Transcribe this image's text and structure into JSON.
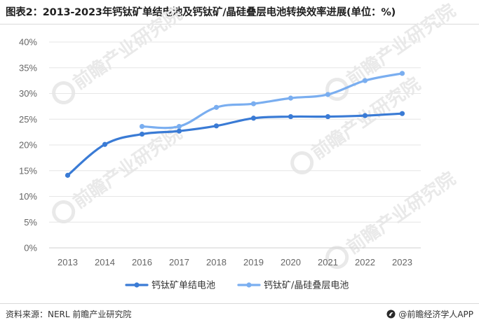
{
  "title": "图表2：2013-2023年钙钛矿单结电池及钙钛矿/晶硅叠层电池转换效率进展(单位：%)",
  "footer": {
    "source": "资料来源：NERL 前瞻产业研究院",
    "brand": "@前瞻经济学人APP"
  },
  "watermark": {
    "text": "前瞻产业研究院",
    "icon": "qianzhan-logo-icon"
  },
  "colors": {
    "single": "#3a7bd5",
    "tandem": "#7aaef0",
    "grid": "#e6e6e6",
    "tick": "#666666",
    "watermark": "#e9e9e9"
  },
  "chart_data": {
    "type": "line",
    "categories": [
      "2013",
      "2014",
      "2016",
      "2017",
      "2018",
      "2019",
      "2020",
      "2021",
      "2022",
      "2023"
    ],
    "yticks": [
      "0%",
      "5%",
      "10%",
      "15%",
      "20%",
      "25%",
      "30%",
      "35%",
      "40%"
    ],
    "ylim": [
      0,
      40
    ],
    "grid": "horizontal",
    "legend_position": "bottom",
    "series": [
      {
        "name": "钙钛矿单结电池",
        "values": [
          14.1,
          20.1,
          22.1,
          22.7,
          23.7,
          25.2,
          25.5,
          25.5,
          25.7,
          26.1
        ]
      },
      {
        "name": "钙钛矿/晶硅叠层电池",
        "values": [
          null,
          null,
          23.6,
          23.6,
          27.3,
          28.0,
          29.1,
          29.8,
          32.5,
          33.9
        ]
      }
    ]
  }
}
